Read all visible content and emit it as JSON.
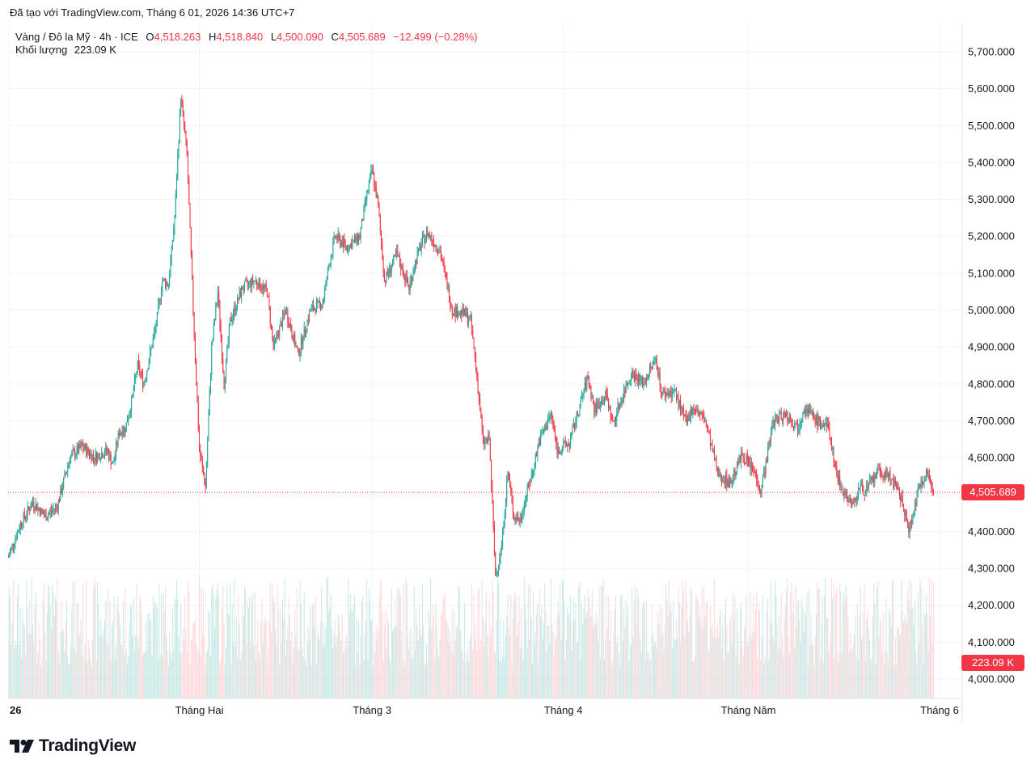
{
  "header": {
    "attribution": "Đã tạo với TradingView.com, Tháng 6 01, 2026 14:36 UTC+7"
  },
  "legend": {
    "symbol": "Vàng / Đô la Mỹ · 4h · ICE",
    "o_label": "O",
    "o_value": "4,518.263",
    "h_label": "H",
    "h_value": "4,518.840",
    "l_label": "L",
    "l_value": "4,500.090",
    "c_label": "C",
    "c_value": "4,505.689",
    "change": "−12.499 (−0.28%)",
    "volume_label": "Khối lượng",
    "volume_value": "223.09 K"
  },
  "tags": {
    "last_price": "4,505.689",
    "last_volume": "223.09 K"
  },
  "brand": {
    "name": "TradingView",
    "icon": "tradingview-logo-icon"
  },
  "colors": {
    "up": "#26a69a",
    "down": "#f23645",
    "up_volume": "#b2dfdb",
    "down_volume": "#fccbcd",
    "grid": "#f0f3fa",
    "text": "#131722"
  },
  "chart_data": {
    "type": "candlestick",
    "symbol": "Vàng / Đô la Mỹ",
    "interval": "4h",
    "exchange": "ICE",
    "y_axis": {
      "side": "right",
      "min": 3950,
      "max": 5750,
      "ticks": [
        4000,
        4100,
        4200,
        4300,
        4400,
        4500,
        4600,
        4700,
        4800,
        4900,
        5000,
        5100,
        5200,
        5300,
        5400,
        5500,
        5600,
        5700
      ],
      "tick_labels": [
        "4,000.000",
        "4,100.000",
        "4,200.000",
        "4,300.000",
        "4,400.000",
        "4,500.000",
        "4,600.000",
        "4,700.000",
        "4,800.000",
        "4,900.000",
        "5,000.000",
        "5,100.000",
        "5,200.000",
        "5,300.000",
        "5,400.000",
        "5,500.000",
        "5,600.000",
        "5,700.000"
      ]
    },
    "x_axis": {
      "start": "2026-01-01",
      "end": "2026-06-01",
      "tick_dates": [
        "2026-01-01",
        "2026-02-01",
        "2026-03-01",
        "2026-04-01",
        "2026-05-01",
        "2026-06-01"
      ],
      "tick_labels": [
        "26",
        "Tháng Hai",
        "Tháng 3",
        "Tháng 4",
        "Tháng Năm",
        "Tháng 6"
      ]
    },
    "grid": true,
    "last_close": 4505.689,
    "price_path": [
      {
        "date": "2026-01-01",
        "close": 4330
      },
      {
        "date": "2026-01-03",
        "close": 4420
      },
      {
        "date": "2026-01-05",
        "close": 4480
      },
      {
        "date": "2026-01-07",
        "close": 4440
      },
      {
        "date": "2026-01-09",
        "close": 4470
      },
      {
        "date": "2026-01-11",
        "close": 4600
      },
      {
        "date": "2026-01-13",
        "close": 4630
      },
      {
        "date": "2026-01-15",
        "close": 4600
      },
      {
        "date": "2026-01-17",
        "close": 4620
      },
      {
        "date": "2026-01-18",
        "close": 4580
      },
      {
        "date": "2026-01-19",
        "close": 4670
      },
      {
        "date": "2026-01-20",
        "close": 4680
      },
      {
        "date": "2026-01-21",
        "close": 4750
      },
      {
        "date": "2026-01-22",
        "close": 4850
      },
      {
        "date": "2026-01-23",
        "close": 4800
      },
      {
        "date": "2026-01-25",
        "close": 4960
      },
      {
        "date": "2026-01-26",
        "close": 5080
      },
      {
        "date": "2026-01-27",
        "close": 5070
      },
      {
        "date": "2026-01-28",
        "close": 5250
      },
      {
        "date": "2026-01-29",
        "close": 5580
      },
      {
        "date": "2026-01-30",
        "close": 5420
      },
      {
        "date": "2026-01-31",
        "close": 5000
      },
      {
        "date": "2026-02-01",
        "close": 4620
      },
      {
        "date": "2026-02-02",
        "close": 4520
      },
      {
        "date": "2026-02-03",
        "close": 4900
      },
      {
        "date": "2026-02-04",
        "close": 5050
      },
      {
        "date": "2026-02-05",
        "close": 4800
      },
      {
        "date": "2026-02-06",
        "close": 4970
      },
      {
        "date": "2026-02-08",
        "close": 5060
      },
      {
        "date": "2026-02-10",
        "close": 5080
      },
      {
        "date": "2026-02-12",
        "close": 5050
      },
      {
        "date": "2026-02-13",
        "close": 4900
      },
      {
        "date": "2026-02-15",
        "close": 5000
      },
      {
        "date": "2026-02-17",
        "close": 4880
      },
      {
        "date": "2026-02-19",
        "close": 5000
      },
      {
        "date": "2026-02-21",
        "close": 5020
      },
      {
        "date": "2026-02-22",
        "close": 5120
      },
      {
        "date": "2026-02-23",
        "close": 5200
      },
      {
        "date": "2026-02-25",
        "close": 5170
      },
      {
        "date": "2026-02-27",
        "close": 5200
      },
      {
        "date": "2026-02-28",
        "close": 5300
      },
      {
        "date": "2026-03-01",
        "close": 5380
      },
      {
        "date": "2026-03-02",
        "close": 5280
      },
      {
        "date": "2026-03-03",
        "close": 5080
      },
      {
        "date": "2026-03-05",
        "close": 5150
      },
      {
        "date": "2026-03-07",
        "close": 5060
      },
      {
        "date": "2026-03-08",
        "close": 5130
      },
      {
        "date": "2026-03-09",
        "close": 5180
      },
      {
        "date": "2026-03-10",
        "close": 5210
      },
      {
        "date": "2026-03-12",
        "close": 5160
      },
      {
        "date": "2026-03-14",
        "close": 5000
      },
      {
        "date": "2026-03-16",
        "close": 4990
      },
      {
        "date": "2026-03-17",
        "close": 4970
      },
      {
        "date": "2026-03-18",
        "close": 4820
      },
      {
        "date": "2026-03-19",
        "close": 4640
      },
      {
        "date": "2026-03-20",
        "close": 4650
      },
      {
        "date": "2026-03-21",
        "close": 4280
      },
      {
        "date": "2026-03-22",
        "close": 4360
      },
      {
        "date": "2026-03-23",
        "close": 4560
      },
      {
        "date": "2026-03-24",
        "close": 4440
      },
      {
        "date": "2026-03-25",
        "close": 4430
      },
      {
        "date": "2026-03-26",
        "close": 4500
      },
      {
        "date": "2026-03-27",
        "close": 4560
      },
      {
        "date": "2026-03-28",
        "close": 4640
      },
      {
        "date": "2026-03-30",
        "close": 4720
      },
      {
        "date": "2026-03-31",
        "close": 4620
      },
      {
        "date": "2026-04-02",
        "close": 4640
      },
      {
        "date": "2026-04-03",
        "close": 4700
      },
      {
        "date": "2026-04-05",
        "close": 4820
      },
      {
        "date": "2026-04-06",
        "close": 4730
      },
      {
        "date": "2026-04-08",
        "close": 4770
      },
      {
        "date": "2026-04-09",
        "close": 4690
      },
      {
        "date": "2026-04-10",
        "close": 4740
      },
      {
        "date": "2026-04-12",
        "close": 4830
      },
      {
        "date": "2026-04-14",
        "close": 4800
      },
      {
        "date": "2026-04-16",
        "close": 4870
      },
      {
        "date": "2026-04-17",
        "close": 4770
      },
      {
        "date": "2026-04-19",
        "close": 4780
      },
      {
        "date": "2026-04-21",
        "close": 4690
      },
      {
        "date": "2026-04-22",
        "close": 4740
      },
      {
        "date": "2026-04-24",
        "close": 4700
      },
      {
        "date": "2026-04-26",
        "close": 4560
      },
      {
        "date": "2026-04-28",
        "close": 4530
      },
      {
        "date": "2026-04-30",
        "close": 4610
      },
      {
        "date": "2026-05-02",
        "close": 4560
      },
      {
        "date": "2026-05-03",
        "close": 4510
      },
      {
        "date": "2026-05-04",
        "close": 4600
      },
      {
        "date": "2026-05-05",
        "close": 4700
      },
      {
        "date": "2026-05-07",
        "close": 4720
      },
      {
        "date": "2026-05-09",
        "close": 4680
      },
      {
        "date": "2026-05-10",
        "close": 4740
      },
      {
        "date": "2026-05-12",
        "close": 4700
      },
      {
        "date": "2026-05-14",
        "close": 4680
      },
      {
        "date": "2026-05-15",
        "close": 4580
      },
      {
        "date": "2026-05-16",
        "close": 4520
      },
      {
        "date": "2026-05-18",
        "close": 4470
      },
      {
        "date": "2026-05-19",
        "close": 4520
      },
      {
        "date": "2026-05-20",
        "close": 4510
      },
      {
        "date": "2026-05-22",
        "close": 4560
      },
      {
        "date": "2026-05-24",
        "close": 4550
      },
      {
        "date": "2026-05-26",
        "close": 4480
      },
      {
        "date": "2026-05-27",
        "close": 4400
      },
      {
        "date": "2026-05-28",
        "close": 4470
      },
      {
        "date": "2026-05-29",
        "close": 4540
      },
      {
        "date": "2026-05-30",
        "close": 4560
      },
      {
        "date": "2026-05-31",
        "close": 4505.689
      }
    ],
    "volume": {
      "last": "223.09 K",
      "max_estimate_k": 480
    }
  }
}
